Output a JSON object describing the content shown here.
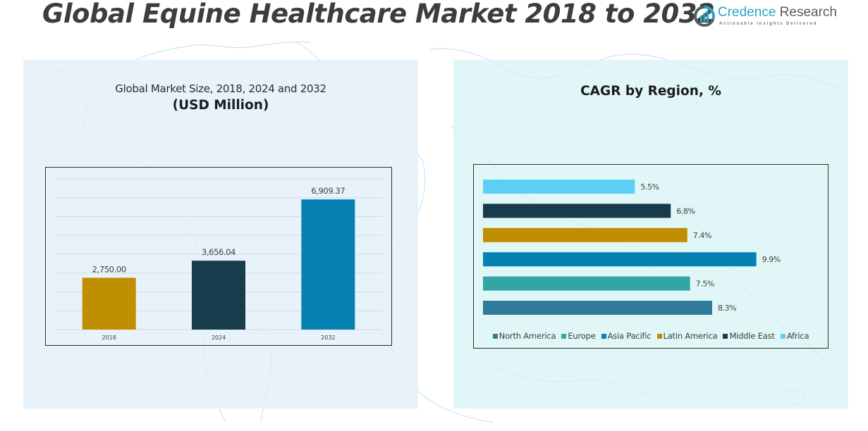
{
  "header": {
    "title": "Global Equine Healthcare Market 2018 to 2032",
    "logo": {
      "name_part1": "Credence",
      "name_part2": " Research",
      "tagline": "Actionable Insights Delivered",
      "icon": "bar-chart-circle-icon",
      "colors": {
        "primary": "#2aa7c9",
        "secondary": "#555d63"
      }
    }
  },
  "left_panel": {
    "subtitle": "Global Market Size, 2018, 2024 and 2032",
    "unit": "(USD Million)"
  },
  "right_panel": {
    "title": "CAGR by Region, %"
  },
  "chart_data": [
    {
      "type": "bar",
      "title": "Global Market Size, 2018, 2024 and 2032 (USD Million)",
      "categories": [
        "2018",
        "2024",
        "2032"
      ],
      "values": [
        2750.0,
        3656.04,
        6909.37
      ],
      "value_labels": [
        "2,750.00",
        "3,656.04",
        "6,909.37"
      ],
      "colors": [
        "#bf8f00",
        "#173d4c",
        "#0681b3"
      ],
      "xlabel": "",
      "ylabel": "USD Million",
      "ylim": [
        0,
        8000
      ],
      "grid_step": 1000,
      "grid": true,
      "y_axis_labels_shown": false,
      "legend": "none"
    },
    {
      "type": "bar",
      "orientation": "horizontal",
      "title": "CAGR by Region, %",
      "categories": [
        "Africa",
        "Middle East",
        "Latin America",
        "Asia Pacific",
        "Europe",
        "North America"
      ],
      "values": [
        5.5,
        6.8,
        7.4,
        9.9,
        7.5,
        8.3
      ],
      "value_labels": [
        "5.5%",
        "6.8%",
        "7.4%",
        "9.9%",
        "7.5%",
        "8.3%"
      ],
      "colors": [
        "#5dcff7",
        "#173d4c",
        "#bf8f00",
        "#0681b3",
        "#33a6a3",
        "#2e7b9b"
      ],
      "xlim": [
        0,
        11.8
      ],
      "grid": false,
      "legend": "bottom",
      "legend_entries": [
        {
          "label": "North America",
          "color": "#2e7b9b"
        },
        {
          "label": "Europe",
          "color": "#33a6a3"
        },
        {
          "label": "Asia Pacific",
          "color": "#0681b3"
        },
        {
          "label": "Latin America",
          "color": "#bf8f00"
        },
        {
          "label": "Middle East",
          "color": "#173d4c"
        },
        {
          "label": "Africa",
          "color": "#5dcff7"
        }
      ]
    }
  ]
}
